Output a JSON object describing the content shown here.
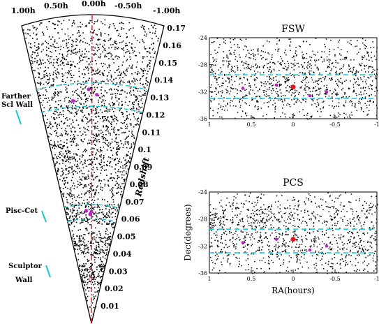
{
  "chart_data": [
    {
      "type": "scatter",
      "panel": "redshift-wedge",
      "ra_ticks": [
        "1.00h",
        "0.50h",
        "0.00h",
        "-0.50h",
        "-1.00h"
      ],
      "ra_range": [
        1.0,
        -1.0
      ],
      "ylabel": "Redshift",
      "ylim": [
        0.0,
        0.175
      ],
      "z_ticks": [
        "0.01",
        "0.02",
        "0.03",
        "0.04",
        "0.05",
        "0.06",
        "0.07",
        "0.08",
        "0.09",
        "0.1",
        "0.11",
        "0.12",
        "0.13",
        "0.14",
        "0.15",
        "0.16",
        "0.17"
      ],
      "wall_annotations": [
        {
          "label_lines": [
            "Farther",
            "Scl Wall"
          ],
          "z_range": [
            0.12,
            0.135
          ]
        },
        {
          "label_lines": [
            "Pisc-Cet"
          ],
          "z_range": [
            0.058,
            0.066
          ]
        },
        {
          "label_lines": [
            "Sculptor",
            "Wall"
          ],
          "z_range": [
            0.018,
            0.03
          ]
        }
      ],
      "reference_line": {
        "ra": 0.0,
        "color": "#e8141e",
        "style": "dash-dot"
      },
      "band_color": "#19c4d4",
      "highlight_color": "#c020c8",
      "grid": false
    },
    {
      "type": "scatter",
      "title": "FSW",
      "xlabel": "",
      "ylabel": "",
      "xlim": [
        1,
        -1
      ],
      "ylim": [
        -36,
        -24
      ],
      "x_ticks": [
        "1",
        "0.5",
        "0",
        "-0.5",
        "-1"
      ],
      "y_ticks": [
        "-24",
        "-28",
        "-32",
        "-36"
      ],
      "bands_dec": [
        -29.5,
        -33.0
      ],
      "highlight": {
        "ra": 0.0,
        "dec": -31.3
      },
      "grid": false
    },
    {
      "type": "scatter",
      "title": "PCS",
      "xlabel": "RA(hours)",
      "ylabel": "Dec(degrees)",
      "xlim": [
        1,
        -1
      ],
      "ylim": [
        -36,
        -24
      ],
      "x_ticks": [
        "1",
        "0.5",
        "0",
        "-0.5",
        "-1"
      ],
      "y_ticks": [
        "-24",
        "-28",
        "-32",
        "-36"
      ],
      "bands_dec": [
        -29.5,
        -33.0
      ],
      "highlight": {
        "ra": 0.0,
        "dec": -31.0
      },
      "grid": false
    }
  ]
}
